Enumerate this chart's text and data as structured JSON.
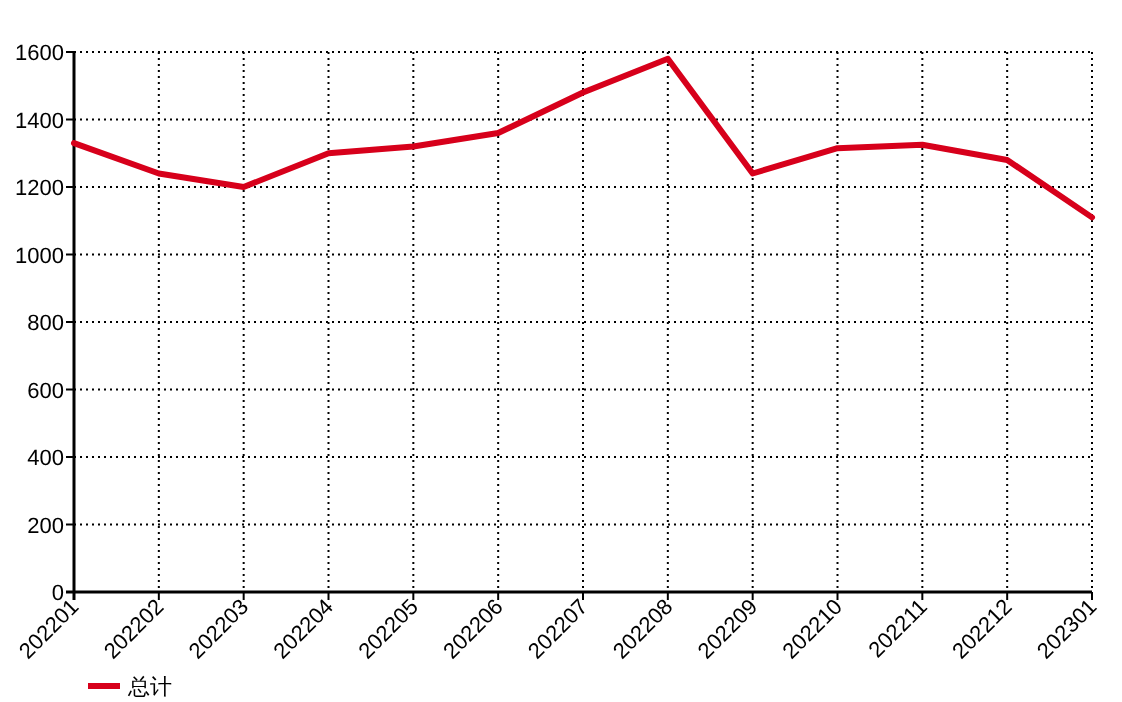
{
  "chart_data": {
    "type": "line",
    "categories": [
      "202201",
      "202202",
      "202203",
      "202204",
      "202205",
      "202206",
      "202207",
      "202208",
      "202209",
      "202210",
      "202211",
      "202212",
      "202301"
    ],
    "series": [
      {
        "name": "总计",
        "color": "#d7001b",
        "values": [
          1330,
          1240,
          1200,
          1300,
          1320,
          1360,
          1480,
          1580,
          1240,
          1315,
          1325,
          1280,
          1110
        ]
      }
    ],
    "ylim": [
      0,
      1600
    ],
    "yticks": [
      0,
      200,
      400,
      600,
      800,
      1000,
      1200,
      1400,
      1600
    ],
    "grid": true,
    "legend": "bottom left",
    "line_style": "solid",
    "marker": "none"
  }
}
